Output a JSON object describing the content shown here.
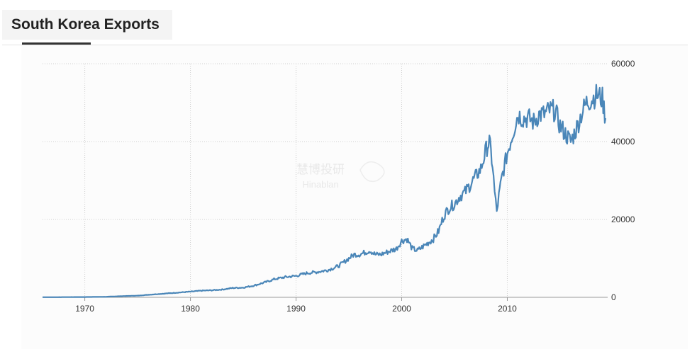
{
  "header": {
    "title": "South Korea Exports"
  },
  "watermark": {
    "cn": "慧博投研",
    "en": "Hinablan"
  },
  "colors": {
    "line": "#4a86b8",
    "grid": "#cfcfcf",
    "tab_bg": "#f4f4f4",
    "text": "#333333"
  },
  "chart_data": {
    "type": "line",
    "title": "South Korea Exports",
    "xlabel": "",
    "ylabel": "",
    "x_ticks": [
      "1970",
      "1980",
      "1990",
      "2000",
      "2010"
    ],
    "y_ticks": [
      "0",
      "20000",
      "40000",
      "60000"
    ],
    "xlim": [
      1966,
      2019.5
    ],
    "ylim": [
      0,
      60000
    ],
    "y_axis_side": "right",
    "grid": true,
    "legend": "none",
    "series": [
      {
        "x": [
          1966,
          1968,
          1970,
          1972,
          1974,
          1975,
          1976,
          1977,
          1978,
          1979,
          1980,
          1981,
          1982,
          1983,
          1984,
          1985,
          1986,
          1987,
          1988,
          1989,
          1990,
          1991,
          1992,
          1993,
          1994,
          1995,
          1995.5,
          1996,
          1996.5,
          1997,
          1997.5,
          1998,
          1998.5,
          1999,
          1999.5,
          2000,
          2000.5,
          2001,
          2001.5,
          2002,
          2002.5,
          2003,
          2003.5,
          2004,
          2004.5,
          2005,
          2005.5,
          2006,
          2006.5,
          2007,
          2007.5,
          2008,
          2008.3,
          2008.6,
          2008.8,
          2009,
          2009.2,
          2009.5,
          2010,
          2010.5,
          2011,
          2011.5,
          2012,
          2012.5,
          2013,
          2013.5,
          2014,
          2014.5,
          2015,
          2015.5,
          2016,
          2016.5,
          2017,
          2017.5,
          2018,
          2018.5,
          2019,
          2019.3
        ],
        "y": [
          30,
          50,
          80,
          140,
          350,
          420,
          650,
          850,
          1050,
          1250,
          1450,
          1700,
          1800,
          2000,
          2400,
          2500,
          3000,
          3800,
          4700,
          5200,
          5500,
          6200,
          6500,
          7000,
          8000,
          10000,
          11000,
          11000,
          11500,
          12000,
          11000,
          11000,
          11500,
          12000,
          12500,
          14500,
          15000,
          12500,
          12000,
          13000,
          14000,
          15000,
          17000,
          21000,
          23000,
          24000,
          26000,
          27000,
          29000,
          31000,
          33000,
          38000,
          40000,
          34000,
          27000,
          22000,
          26000,
          31000,
          37000,
          42000,
          47000,
          46000,
          46000,
          45000,
          47000,
          47000,
          48000,
          48000,
          44000,
          42000,
          40000,
          43000,
          47000,
          50000,
          51000,
          52000,
          51000,
          46000
        ]
      }
    ]
  }
}
